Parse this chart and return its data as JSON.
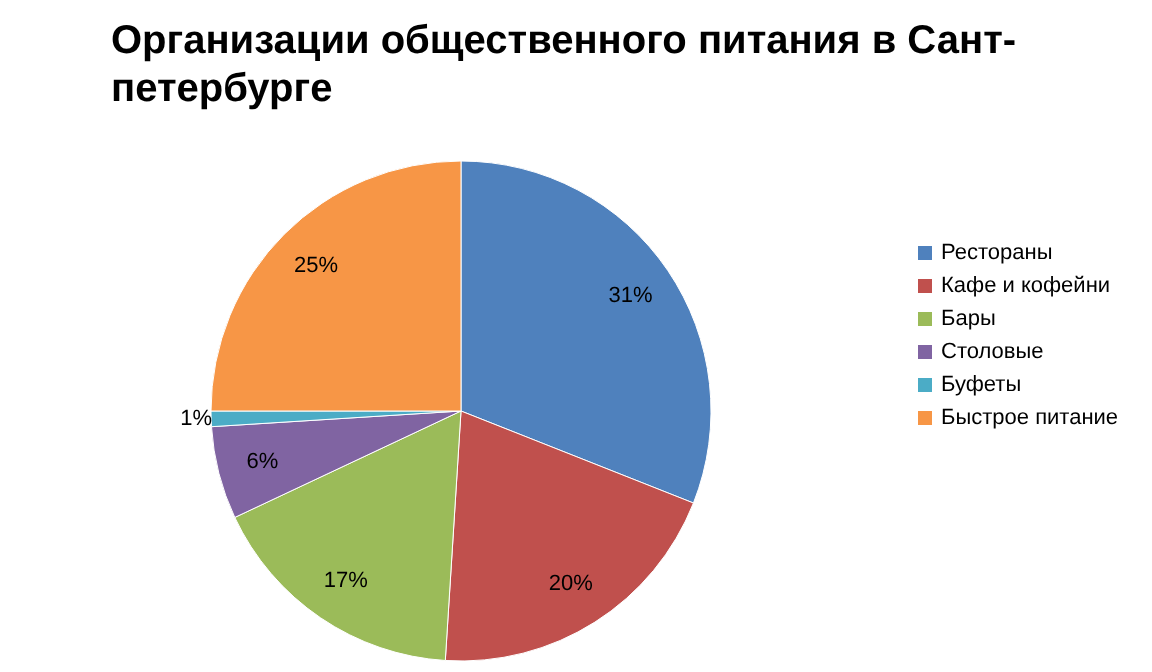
{
  "chart_data": {
    "type": "pie",
    "title": "Организации общественного питания в Сант-петербурге",
    "categories": [
      "Рестораны",
      "Кафе и кофейни",
      "Бары",
      "Столовые",
      "Буфеты",
      "Быстрое питание"
    ],
    "values": [
      31,
      20,
      17,
      6,
      1,
      25
    ],
    "colors": [
      "#4f81bd",
      "#c0504d",
      "#9bbb59",
      "#8064a2",
      "#4bacc6",
      "#f79646"
    ],
    "value_labels": [
      "31%",
      "20%",
      "17%",
      "6%",
      "1%",
      "25%"
    ],
    "legend": "right"
  }
}
